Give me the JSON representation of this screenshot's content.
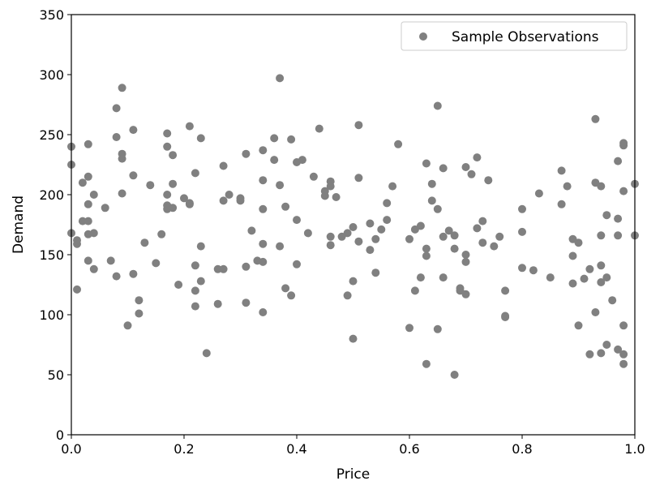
{
  "chart_data": {
    "type": "scatter",
    "title": "",
    "xlabel": "Price",
    "ylabel": "Demand",
    "xlim": [
      0.0,
      1.0
    ],
    "ylim": [
      0,
      350
    ],
    "xticks": [
      "0.0",
      "0.2",
      "0.4",
      "0.6",
      "0.8",
      "1.0"
    ],
    "yticks": [
      "0",
      "50",
      "100",
      "150",
      "200",
      "250",
      "300",
      "350"
    ],
    "xtick_values": [
      0.0,
      0.2,
      0.4,
      0.6,
      0.8,
      1.0
    ],
    "ytick_values": [
      0,
      50,
      100,
      150,
      200,
      250,
      300,
      350
    ],
    "grid": false,
    "legend": {
      "position": "top-right",
      "entries": [
        "Sample Observations"
      ]
    },
    "colors": {
      "points": "#808080",
      "axes": "#000000",
      "legend_border": "#cccccc"
    },
    "series": [
      {
        "name": "Sample Observations",
        "marker": "circle",
        "points": [
          [
            0.0,
            240
          ],
          [
            0.0,
            225
          ],
          [
            0.0,
            168
          ],
          [
            0.01,
            162
          ],
          [
            0.01,
            159
          ],
          [
            0.01,
            121
          ],
          [
            0.02,
            210
          ],
          [
            0.02,
            178
          ],
          [
            0.03,
            242
          ],
          [
            0.03,
            215
          ],
          [
            0.03,
            192
          ],
          [
            0.03,
            178
          ],
          [
            0.03,
            167
          ],
          [
            0.03,
            145
          ],
          [
            0.04,
            200
          ],
          [
            0.04,
            168
          ],
          [
            0.04,
            138
          ],
          [
            0.06,
            189
          ],
          [
            0.07,
            145
          ],
          [
            0.08,
            272
          ],
          [
            0.08,
            248
          ],
          [
            0.08,
            132
          ],
          [
            0.09,
            289
          ],
          [
            0.09,
            234
          ],
          [
            0.09,
            230
          ],
          [
            0.09,
            201
          ],
          [
            0.1,
            91
          ],
          [
            0.11,
            254
          ],
          [
            0.11,
            216
          ],
          [
            0.11,
            134
          ],
          [
            0.12,
            112
          ],
          [
            0.12,
            101
          ],
          [
            0.13,
            160
          ],
          [
            0.14,
            208
          ],
          [
            0.15,
            143
          ],
          [
            0.16,
            167
          ],
          [
            0.17,
            251
          ],
          [
            0.17,
            240
          ],
          [
            0.17,
            200
          ],
          [
            0.17,
            191
          ],
          [
            0.17,
            188
          ],
          [
            0.18,
            233
          ],
          [
            0.18,
            209
          ],
          [
            0.18,
            189
          ],
          [
            0.19,
            125
          ],
          [
            0.2,
            197
          ],
          [
            0.21,
            257
          ],
          [
            0.21,
            193
          ],
          [
            0.21,
            192
          ],
          [
            0.22,
            218
          ],
          [
            0.22,
            141
          ],
          [
            0.22,
            120
          ],
          [
            0.22,
            107
          ],
          [
            0.23,
            247
          ],
          [
            0.23,
            157
          ],
          [
            0.23,
            128
          ],
          [
            0.24,
            68
          ],
          [
            0.26,
            138
          ],
          [
            0.26,
            109
          ],
          [
            0.27,
            224
          ],
          [
            0.27,
            195
          ],
          [
            0.27,
            138
          ],
          [
            0.28,
            200
          ],
          [
            0.3,
            197
          ],
          [
            0.3,
            195
          ],
          [
            0.31,
            234
          ],
          [
            0.31,
            140
          ],
          [
            0.31,
            110
          ],
          [
            0.32,
            170
          ],
          [
            0.33,
            145
          ],
          [
            0.34,
            237
          ],
          [
            0.34,
            212
          ],
          [
            0.34,
            188
          ],
          [
            0.34,
            159
          ],
          [
            0.34,
            144
          ],
          [
            0.34,
            102
          ],
          [
            0.36,
            247
          ],
          [
            0.36,
            229
          ],
          [
            0.37,
            297
          ],
          [
            0.37,
            208
          ],
          [
            0.37,
            157
          ],
          [
            0.38,
            190
          ],
          [
            0.38,
            122
          ],
          [
            0.39,
            246
          ],
          [
            0.39,
            116
          ],
          [
            0.4,
            227
          ],
          [
            0.4,
            179
          ],
          [
            0.4,
            142
          ],
          [
            0.41,
            229
          ],
          [
            0.42,
            168
          ],
          [
            0.43,
            215
          ],
          [
            0.44,
            255
          ],
          [
            0.45,
            203
          ],
          [
            0.45,
            199
          ],
          [
            0.46,
            211
          ],
          [
            0.46,
            207
          ],
          [
            0.46,
            165
          ],
          [
            0.46,
            158
          ],
          [
            0.47,
            198
          ],
          [
            0.48,
            165
          ],
          [
            0.49,
            168
          ],
          [
            0.49,
            116
          ],
          [
            0.5,
            173
          ],
          [
            0.5,
            128
          ],
          [
            0.5,
            80
          ],
          [
            0.51,
            258
          ],
          [
            0.51,
            214
          ],
          [
            0.51,
            161
          ],
          [
            0.53,
            176
          ],
          [
            0.53,
            154
          ],
          [
            0.54,
            163
          ],
          [
            0.54,
            135
          ],
          [
            0.55,
            171
          ],
          [
            0.56,
            193
          ],
          [
            0.56,
            179
          ],
          [
            0.57,
            207
          ],
          [
            0.58,
            242
          ],
          [
            0.6,
            163
          ],
          [
            0.6,
            89
          ],
          [
            0.61,
            171
          ],
          [
            0.61,
            120
          ],
          [
            0.62,
            174
          ],
          [
            0.62,
            131
          ],
          [
            0.63,
            226
          ],
          [
            0.63,
            155
          ],
          [
            0.63,
            149
          ],
          [
            0.63,
            59
          ],
          [
            0.64,
            209
          ],
          [
            0.64,
            195
          ],
          [
            0.65,
            274
          ],
          [
            0.65,
            188
          ],
          [
            0.65,
            88
          ],
          [
            0.66,
            222
          ],
          [
            0.66,
            165
          ],
          [
            0.66,
            131
          ],
          [
            0.67,
            170
          ],
          [
            0.68,
            166
          ],
          [
            0.68,
            155
          ],
          [
            0.68,
            50
          ],
          [
            0.69,
            122
          ],
          [
            0.69,
            120
          ],
          [
            0.7,
            223
          ],
          [
            0.7,
            150
          ],
          [
            0.7,
            144
          ],
          [
            0.7,
            117
          ],
          [
            0.71,
            217
          ],
          [
            0.72,
            231
          ],
          [
            0.72,
            172
          ],
          [
            0.73,
            178
          ],
          [
            0.73,
            160
          ],
          [
            0.74,
            212
          ],
          [
            0.75,
            157
          ],
          [
            0.76,
            165
          ],
          [
            0.77,
            120
          ],
          [
            0.77,
            99
          ],
          [
            0.77,
            98
          ],
          [
            0.8,
            188
          ],
          [
            0.8,
            169
          ],
          [
            0.8,
            139
          ],
          [
            0.82,
            137
          ],
          [
            0.83,
            201
          ],
          [
            0.85,
            131
          ],
          [
            0.87,
            220
          ],
          [
            0.87,
            192
          ],
          [
            0.88,
            207
          ],
          [
            0.89,
            163
          ],
          [
            0.89,
            149
          ],
          [
            0.89,
            126
          ],
          [
            0.9,
            160
          ],
          [
            0.9,
            91
          ],
          [
            0.91,
            130
          ],
          [
            0.92,
            138
          ],
          [
            0.92,
            67
          ],
          [
            0.93,
            263
          ],
          [
            0.93,
            210
          ],
          [
            0.93,
            102
          ],
          [
            0.94,
            207
          ],
          [
            0.94,
            166
          ],
          [
            0.94,
            141
          ],
          [
            0.94,
            127
          ],
          [
            0.94,
            68
          ],
          [
            0.95,
            183
          ],
          [
            0.95,
            131
          ],
          [
            0.95,
            75
          ],
          [
            0.96,
            112
          ],
          [
            0.97,
            228
          ],
          [
            0.97,
            180
          ],
          [
            0.97,
            166
          ],
          [
            0.97,
            71
          ],
          [
            0.98,
            243
          ],
          [
            0.98,
            241
          ],
          [
            0.98,
            203
          ],
          [
            0.98,
            91
          ],
          [
            0.98,
            67
          ],
          [
            0.98,
            59
          ],
          [
            1.0,
            209
          ],
          [
            1.0,
            166
          ]
        ]
      }
    ]
  }
}
